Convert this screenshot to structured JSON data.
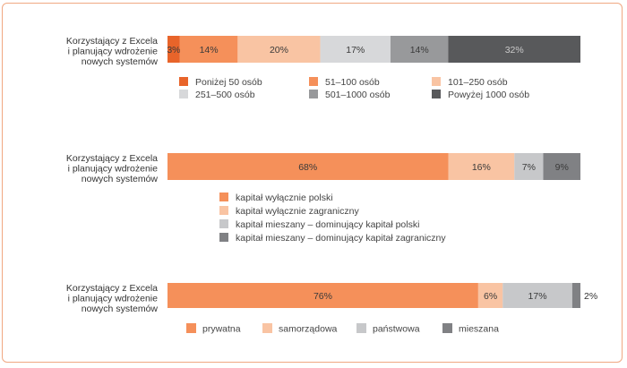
{
  "chart_data": [
    {
      "type": "bar",
      "orientation": "horizontal",
      "stacked": true,
      "percent_scale": true,
      "category_label": [
        "Korzystający z Excela",
        "i planujący wdrożenie",
        "nowych systemów"
      ],
      "series": [
        {
          "name": "Poniżej 50 osób",
          "value": 3,
          "label": "3%",
          "color": "#e8642a"
        },
        {
          "name": "51–100 osób",
          "value": 14,
          "label": "14%",
          "color": "#f5905a"
        },
        {
          "name": "101–250 osób",
          "value": 20,
          "label": "20%",
          "color": "#f9c4a3"
        },
        {
          "name": "251–500 osób",
          "value": 17,
          "label": "17%",
          "color": "#d7d8da"
        },
        {
          "name": "501–1000 osób",
          "value": 14,
          "label": "14%",
          "color": "#98999b"
        },
        {
          "name": "Powyżej 1000 osób",
          "value": 32,
          "label": "32%",
          "color": "#58595b"
        }
      ],
      "legend_layout": "grid-3-columns"
    },
    {
      "type": "bar",
      "orientation": "horizontal",
      "stacked": true,
      "percent_scale": true,
      "category_label": [
        "Korzystający z Excela",
        "i planujący wdrożenie",
        "nowych systemów"
      ],
      "series": [
        {
          "name": "kapitał wyłącznie polski",
          "value": 68,
          "label": "68%",
          "color": "#f5905a"
        },
        {
          "name": "kapitał wyłącznie zagraniczny",
          "value": 16,
          "label": "16%",
          "color": "#f9c4a3"
        },
        {
          "name": "kapitał mieszany – dominujący kapitał polski",
          "value": 7,
          "label": "7%",
          "color": "#c7c8ca"
        },
        {
          "name": "kapitał mieszany – dominujący kapitał zagraniczny",
          "value": 9,
          "label": "9%",
          "color": "#808184"
        }
      ],
      "legend_layout": "vertical-list"
    },
    {
      "type": "bar",
      "orientation": "horizontal",
      "stacked": true,
      "percent_scale": true,
      "category_label": [
        "Korzystający z Excela",
        "i planujący wdrożenie",
        "nowych systemów"
      ],
      "series": [
        {
          "name": "prywatna",
          "value": 76,
          "label": "76%",
          "color": "#f5905a"
        },
        {
          "name": "samorządowa",
          "value": 6,
          "label": "6%",
          "color": "#f9c4a3"
        },
        {
          "name": "państwowa",
          "value": 17,
          "label": "17%",
          "color": "#c7c8ca"
        },
        {
          "name": "mieszana",
          "value": 2,
          "label": "2%",
          "color": "#808184"
        }
      ],
      "legend_layout": "single-row"
    }
  ]
}
